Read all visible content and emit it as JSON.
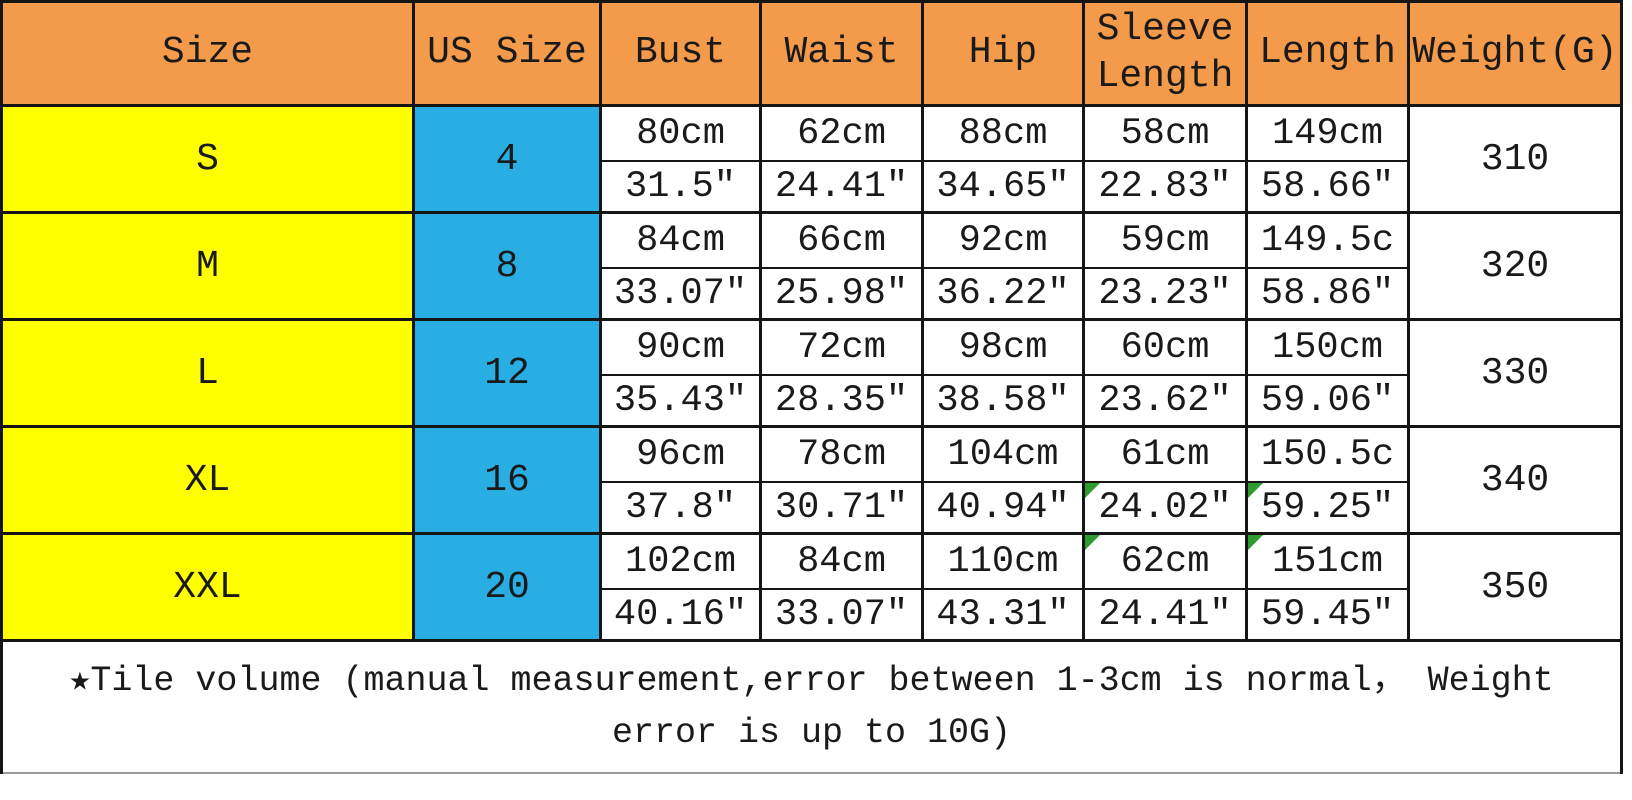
{
  "colors": {
    "header_bg": "#f49a4b",
    "size_col_bg": "#ffff00",
    "us_size_col_bg": "#29aee3",
    "flag_green": "#2e9b2e",
    "border": "#151515",
    "note_rule": "#9a9a9a",
    "text": "#1a1a1a"
  },
  "chart_data": {
    "type": "table",
    "title": "Garment size chart",
    "headers": [
      "Size",
      "US Size",
      "Bust",
      "Waist",
      "Hip",
      "Sleeve Length",
      "Length",
      "Weight(G)"
    ],
    "measure_columns": [
      "Bust",
      "Waist",
      "Hip",
      "Sleeve Length",
      "Length"
    ],
    "rows": [
      {
        "size": "S",
        "us_size": "4",
        "cm": [
          "80cm",
          "62cm",
          "88cm",
          "58cm",
          "149cm"
        ],
        "inch": [
          "31.5″",
          "24.41″",
          "34.65″",
          "22.83″",
          "58.66″"
        ],
        "weight": "310",
        "flags_cm": [],
        "flags_inch": []
      },
      {
        "size": "M",
        "us_size": "8",
        "cm": [
          "84cm",
          "66cm",
          "92cm",
          "59cm",
          "149.5c"
        ],
        "inch": [
          "33.07″",
          "25.98″",
          "36.22″",
          "23.23″",
          "58.86″"
        ],
        "weight": "320",
        "flags_cm": [],
        "flags_inch": []
      },
      {
        "size": "L",
        "us_size": "12",
        "cm": [
          "90cm",
          "72cm",
          "98cm",
          "60cm",
          "150cm"
        ],
        "inch": [
          "35.43″",
          "28.35″",
          "38.58″",
          "23.62″",
          "59.06″"
        ],
        "weight": "330",
        "flags_cm": [],
        "flags_inch": []
      },
      {
        "size": "XL",
        "us_size": "16",
        "cm": [
          "96cm",
          "78cm",
          "104cm",
          "61cm",
          "150.5c"
        ],
        "inch": [
          "37.8″",
          "30.71″",
          "40.94″",
          "24.02″",
          "59.25″"
        ],
        "weight": "340",
        "flags_cm": [],
        "flags_inch": [
          3,
          4
        ]
      },
      {
        "size": "XXL",
        "us_size": "20",
        "cm": [
          "102cm",
          "84cm",
          "110cm",
          "62cm",
          "151cm"
        ],
        "inch": [
          "40.16″",
          "33.07″",
          "43.31″",
          "24.41″",
          "59.45″"
        ],
        "weight": "350",
        "flags_cm": [
          3,
          4
        ],
        "flags_inch": []
      }
    ],
    "note_line1": "★Tile volume (manual measurement,error between 1-3cm is normal， Weight",
    "note_line2": "error is up to 10G)"
  }
}
